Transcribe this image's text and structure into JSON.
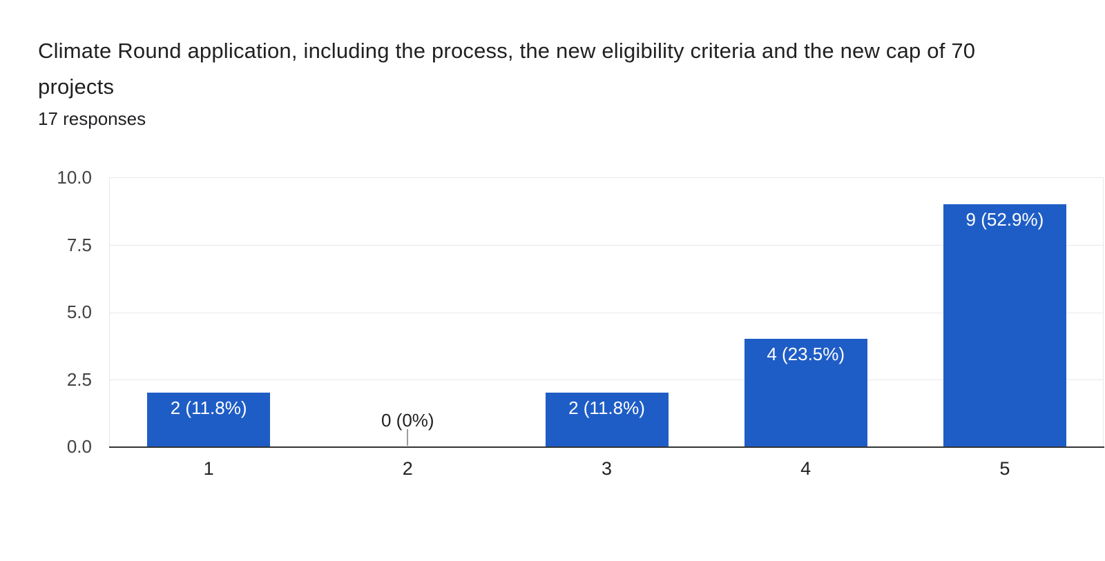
{
  "header": {
    "title": "Climate Round application, including the process, the new eligibility criteria and the new cap of 70 projects",
    "responses_count": "17 responses"
  },
  "colors": {
    "bar": "#1f5dc6",
    "bar_label_text": "#ffffff",
    "zero_label_text": "#212121",
    "zero_stub": "#9e9e9e",
    "axis_line": "#333333",
    "gridline": "#e8e8e8",
    "title_text": "#212121",
    "y_tick_text": "#424242",
    "x_tick_text": "#212121",
    "background": "#ffffff"
  },
  "chart_data": {
    "type": "bar",
    "title": "Climate Round application, including the process, the new eligibility criteria and the new cap of 70 projects",
    "subtitle": "17 responses",
    "categories": [
      "1",
      "2",
      "3",
      "4",
      "5"
    ],
    "values": [
      2,
      0,
      2,
      4,
      9
    ],
    "bar_labels": [
      "2 (11.8%)",
      "0 (0%)",
      "2 (11.8%)",
      "4 (23.5%)",
      "9 (52.9%)"
    ],
    "percentages": [
      11.8,
      0,
      11.8,
      23.5,
      52.9
    ],
    "total_responses": 17,
    "xlabel": "",
    "ylabel": "",
    "ylim": [
      0,
      10
    ],
    "yticks": [
      "0.0",
      "2.5",
      "5.0",
      "7.5",
      "10.0"
    ],
    "grid": true,
    "legend_position": "none",
    "bar_color": "#1f5dc6"
  }
}
